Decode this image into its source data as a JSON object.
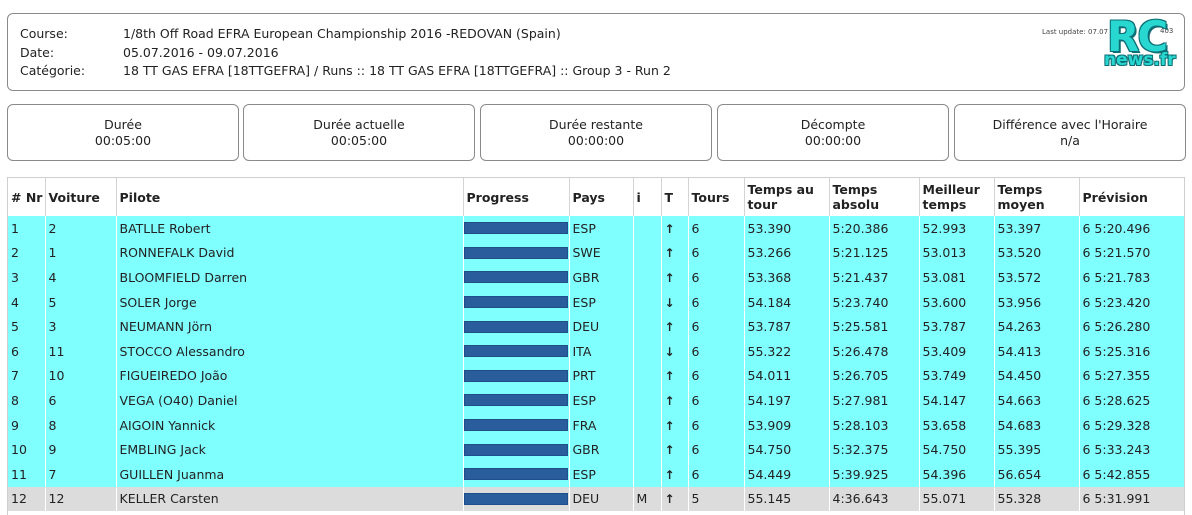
{
  "header": {
    "course_label": "Course:",
    "course_value": "1/8th Off Road EFRA European Championship 2016 -REDOVAN (Spain)",
    "date_label": "Date:",
    "date_value": "05.07.2016 - 09.07.2016",
    "category_label": "Catégorie:",
    "category_value": "18 TT GAS EFRA [18TTGEFRA] / Runs :: 18 TT GAS EFRA [18TTGEFRA] :: Group 3 - Run 2",
    "last_update": "Last update: 07.07",
    "counter": "403",
    "logo_top": "RC",
    "logo_bottom": "news.fr"
  },
  "stats": [
    {
      "title": "Durée",
      "value": "00:05:00"
    },
    {
      "title": "Durée actuelle",
      "value": "00:05:00"
    },
    {
      "title": "Durée restante",
      "value": "00:00:00"
    },
    {
      "title": "Décompte",
      "value": "00:00:00"
    },
    {
      "title": "Différence avec l'Horaire",
      "value": "n/a"
    }
  ],
  "table": {
    "columns": {
      "nr": "# Nr",
      "voiture": "Voiture",
      "pilote": "Pilote",
      "progress": "Progress",
      "pays": "Pays",
      "i": "i",
      "t": "T",
      "tours": "Tours",
      "temps_tour": "Temps au tour",
      "temps_absolu": "Temps absolu",
      "meilleur": "Meilleur temps",
      "moyen": "Temps moyen",
      "prevision": "Prévision"
    },
    "rows": [
      {
        "pos": "1",
        "car": "2",
        "driver": "BATLLE Robert",
        "progress": 1.0,
        "country": "ESP",
        "info": "",
        "trend": "up",
        "laps": "6",
        "lap_time": "53.390",
        "abs_time": "5:20.386",
        "best": "52.993",
        "avg": "53.397",
        "forecast": "6 5:20.496",
        "highlight": "cyan"
      },
      {
        "pos": "2",
        "car": "1",
        "driver": "RONNEFALK David",
        "progress": 1.0,
        "country": "SWE",
        "info": "",
        "trend": "up",
        "laps": "6",
        "lap_time": "53.266",
        "abs_time": "5:21.125",
        "best": "53.013",
        "avg": "53.520",
        "forecast": "6 5:21.570",
        "highlight": "cyan"
      },
      {
        "pos": "3",
        "car": "4",
        "driver": "BLOOMFIELD Darren",
        "progress": 1.0,
        "country": "GBR",
        "info": "",
        "trend": "up",
        "laps": "6",
        "lap_time": "53.368",
        "abs_time": "5:21.437",
        "best": "53.081",
        "avg": "53.572",
        "forecast": "6 5:21.783",
        "highlight": "cyan"
      },
      {
        "pos": "4",
        "car": "5",
        "driver": "SOLER Jorge",
        "progress": 1.0,
        "country": "ESP",
        "info": "",
        "trend": "down",
        "laps": "6",
        "lap_time": "54.184",
        "abs_time": "5:23.740",
        "best": "53.600",
        "avg": "53.956",
        "forecast": "6 5:23.420",
        "highlight": "cyan"
      },
      {
        "pos": "5",
        "car": "3",
        "driver": "NEUMANN Jörn",
        "progress": 1.0,
        "country": "DEU",
        "info": "",
        "trend": "up",
        "laps": "6",
        "lap_time": "53.787",
        "abs_time": "5:25.581",
        "best": "53.787",
        "avg": "54.263",
        "forecast": "6 5:26.280",
        "highlight": "cyan"
      },
      {
        "pos": "6",
        "car": "11",
        "driver": "STOCCO Alessandro",
        "progress": 1.0,
        "country": "ITA",
        "info": "",
        "trend": "down",
        "laps": "6",
        "lap_time": "55.322",
        "abs_time": "5:26.478",
        "best": "53.409",
        "avg": "54.413",
        "forecast": "6 5:25.316",
        "highlight": "cyan"
      },
      {
        "pos": "7",
        "car": "10",
        "driver": "FIGUEIREDO João",
        "progress": 1.0,
        "country": "PRT",
        "info": "",
        "trend": "up",
        "laps": "6",
        "lap_time": "54.011",
        "abs_time": "5:26.705",
        "best": "53.749",
        "avg": "54.450",
        "forecast": "6 5:27.355",
        "highlight": "cyan"
      },
      {
        "pos": "8",
        "car": "6",
        "driver": "VEGA (O40) Daniel",
        "progress": 1.0,
        "country": "ESP",
        "info": "",
        "trend": "up",
        "laps": "6",
        "lap_time": "54.197",
        "abs_time": "5:27.981",
        "best": "54.147",
        "avg": "54.663",
        "forecast": "6 5:28.625",
        "highlight": "cyan"
      },
      {
        "pos": "9",
        "car": "8",
        "driver": "AIGOIN Yannick",
        "progress": 1.0,
        "country": "FRA",
        "info": "",
        "trend": "up",
        "laps": "6",
        "lap_time": "53.909",
        "abs_time": "5:28.103",
        "best": "53.658",
        "avg": "54.683",
        "forecast": "6 5:29.328",
        "highlight": "cyan"
      },
      {
        "pos": "10",
        "car": "9",
        "driver": "EMBLING Jack",
        "progress": 1.0,
        "country": "GBR",
        "info": "",
        "trend": "up",
        "laps": "6",
        "lap_time": "54.750",
        "abs_time": "5:32.375",
        "best": "54.750",
        "avg": "55.395",
        "forecast": "6 5:33.243",
        "highlight": "cyan"
      },
      {
        "pos": "11",
        "car": "7",
        "driver": "GUILLEN Juanma",
        "progress": 1.0,
        "country": "ESP",
        "info": "",
        "trend": "up",
        "laps": "6",
        "lap_time": "54.449",
        "abs_time": "5:39.925",
        "best": "54.396",
        "avg": "56.654",
        "forecast": "6 5:42.855",
        "highlight": "cyan"
      },
      {
        "pos": "12",
        "car": "12",
        "driver": "KELLER Carsten",
        "progress": 1.0,
        "country": "DEU",
        "info": "M",
        "trend": "up",
        "laps": "5",
        "lap_time": "55.145",
        "abs_time": "4:36.643",
        "best": "55.071",
        "avg": "55.328",
        "forecast": "6 5:31.991",
        "highlight": "grey"
      }
    ]
  },
  "colors": {
    "row_highlight": "#80ffff",
    "row_grey": "#dcdcdc",
    "progress_bar": "#2a5d9c",
    "logo": "#28d7d0"
  }
}
